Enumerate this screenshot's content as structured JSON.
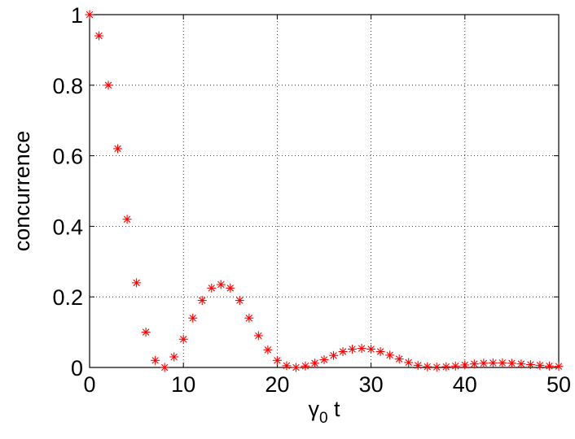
{
  "chart_data": {
    "type": "scatter",
    "xlabel": {
      "symbol": "γ",
      "subscript": "0",
      "suffix": " t"
    },
    "ylabel": "concurrence",
    "xlim": [
      0,
      50
    ],
    "ylim": [
      0,
      1
    ],
    "xticks": [
      0,
      10,
      20,
      30,
      40,
      50
    ],
    "yticks": [
      0,
      0.2,
      0.4,
      0.6,
      0.8,
      1
    ],
    "xtick_labels": [
      "0",
      "10",
      "20",
      "30",
      "40",
      "50"
    ],
    "ytick_labels": [
      "0",
      "0.2",
      "0.4",
      "0.6",
      "0.8",
      "1"
    ],
    "grid": true,
    "marker": "asterisk",
    "series": [
      {
        "color": "#ff0000",
        "x": [
          0,
          1,
          2,
          3,
          4,
          5,
          6,
          7,
          8,
          9,
          10,
          11,
          12,
          13,
          14,
          15,
          16,
          17,
          18,
          19,
          20,
          21,
          22,
          23,
          24,
          25,
          26,
          27,
          28,
          29,
          30,
          31,
          32,
          33,
          34,
          35,
          36,
          37,
          38,
          39,
          40,
          41,
          42,
          43,
          44,
          45,
          46,
          47,
          48,
          49,
          50
        ],
        "y": [
          1.0,
          0.94,
          0.8,
          0.62,
          0.42,
          0.24,
          0.1,
          0.02,
          0.0,
          0.03,
          0.08,
          0.14,
          0.19,
          0.225,
          0.235,
          0.225,
          0.19,
          0.14,
          0.09,
          0.05,
          0.02,
          0.005,
          0.0,
          0.004,
          0.012,
          0.022,
          0.034,
          0.045,
          0.052,
          0.054,
          0.052,
          0.045,
          0.035,
          0.024,
          0.014,
          0.006,
          0.002,
          0.001,
          0.002,
          0.004,
          0.007,
          0.01,
          0.012,
          0.013,
          0.013,
          0.012,
          0.01,
          0.008,
          0.006,
          0.004,
          0.003
        ]
      }
    ]
  }
}
